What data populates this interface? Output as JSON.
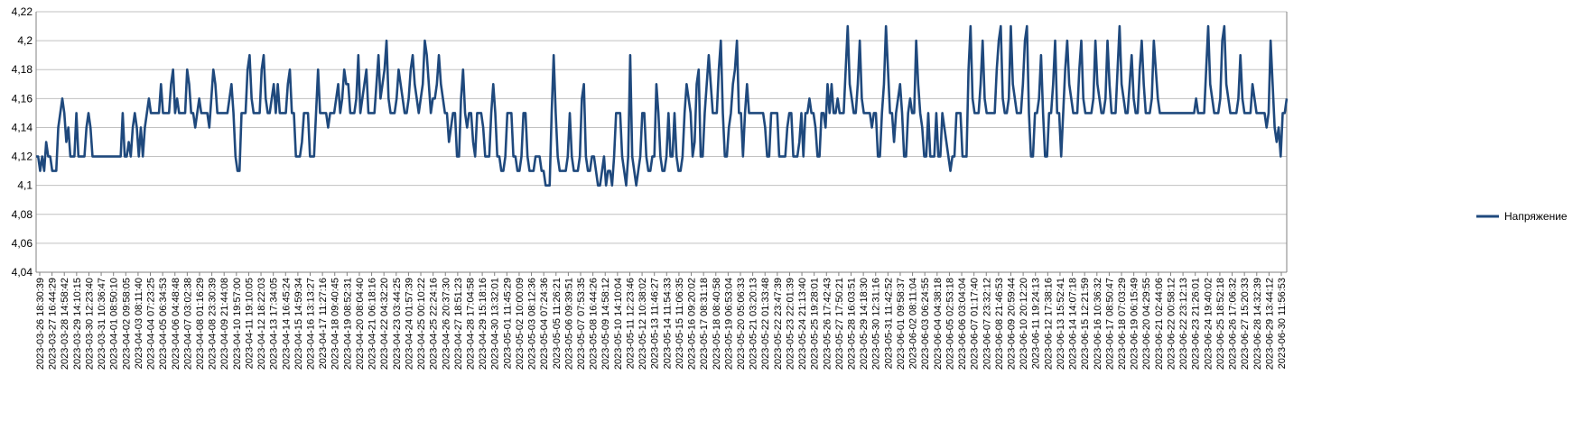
{
  "chart_data": {
    "type": "line",
    "title": "",
    "xlabel": "",
    "ylabel": "",
    "ylim": [
      4.04,
      4.22
    ],
    "y_ticks": [
      "4,04",
      "4,06",
      "4,08",
      "4,1",
      "4,12",
      "4,14",
      "4,16",
      "4,18",
      "4,2",
      "4,22"
    ],
    "grid": "horizontal",
    "legend_position": "right",
    "colors": {
      "series": "#1f497d",
      "grid": "#c0c0c0",
      "axis": "#808080"
    },
    "x_tick_labels": [
      "2023-03-26 18:30:39",
      "2023-03-27 16:44:29",
      "2023-03-28 14:58:42",
      "2023-03-29 14:10:15",
      "2023-03-30 12:23:40",
      "2023-03-31 10:36:47",
      "2023-04-01 08:50:10",
      "2023-04-02 09:58:05",
      "2023-04-03 08:11:40",
      "2023-04-04 07:23:25",
      "2023-04-05 06:34:53",
      "2023-04-06 04:48:48",
      "2023-04-07 03:02:38",
      "2023-04-08 01:16:29",
      "2023-04-08 23:30:39",
      "2023-04-09 21:44:08",
      "2023-04-10 19:57:00",
      "2023-04-11 19:10:05",
      "2023-04-12 18:22:03",
      "2023-04-13 17:34:05",
      "2023-04-14 16:45:24",
      "2023-04-15 14:59:34",
      "2023-04-16 13:13:27",
      "2023-04-17 11:27:16",
      "2023-04-18 09:40:45",
      "2023-04-19 08:52:31",
      "2023-04-20 08:04:40",
      "2023-04-21 06:18:16",
      "2023-04-22 04:32:20",
      "2023-04-23 03:44:25",
      "2023-04-24 01:57:39",
      "2023-04-25 00:10:22",
      "2023-04-25 22:24:16",
      "2023-04-26 20:37:30",
      "2023-04-27 18:51:23",
      "2023-04-28 17:04:58",
      "2023-04-29 15:18:16",
      "2023-04-30 13:32:01",
      "2023-05-01 11:45:29",
      "2023-05-02 10:00:09",
      "2023-05-03 08:12:36",
      "2023-05-04 07:24:36",
      "2023-05-05 11:26:21",
      "2023-05-06 09:39:51",
      "2023-05-07 07:53:35",
      "2023-05-08 16:44:26",
      "2023-05-09 14:58:12",
      "2023-05-10 14:10:04",
      "2023-05-11 12:23:46",
      "2023-05-12 10:38:02",
      "2023-05-13 11:46:27",
      "2023-05-14 11:54:33",
      "2023-05-15 11:06:35",
      "2023-05-16 09:20:02",
      "2023-05-17 08:31:18",
      "2023-05-18 08:40:58",
      "2023-05-19 06:53:04",
      "2023-05-20 05:06:33",
      "2023-05-21 03:20:13",
      "2023-05-22 01:33:48",
      "2023-05-22 23:47:39",
      "2023-05-23 22:01:39",
      "2023-05-24 21:13:40",
      "2023-05-25 19:28:01",
      "2023-05-26 17:42:43",
      "2023-05-27 17:50:21",
      "2023-05-28 16:03:51",
      "2023-05-29 14:18:30",
      "2023-05-30 12:31:16",
      "2023-05-31 11:42:52",
      "2023-06-01 09:58:37",
      "2023-06-02 08:11:04",
      "2023-06-03 06:24:55",
      "2023-06-04 04:38:18",
      "2023-06-05 02:53:18",
      "2023-06-06 03:04:04",
      "2023-06-07 01:17:40",
      "2023-06-07 23:32:12",
      "2023-06-08 21:46:53",
      "2023-06-09 20:59:44",
      "2023-06-10 20:12:20",
      "2023-06-11 19:24:13",
      "2023-06-12 17:38:16",
      "2023-06-13 15:52:41",
      "2023-06-14 14:07:18",
      "2023-06-15 12:21:59",
      "2023-06-16 10:36:32",
      "2023-06-17 08:50:47",
      "2023-06-18 07:03:29",
      "2023-06-19 06:15:49",
      "2023-06-20 04:29:55",
      "2023-06-21 02:44:06",
      "2023-06-22 00:58:12",
      "2023-06-22 23:12:13",
      "2023-06-23 21:26:01",
      "2023-06-24 19:40:02",
      "2023-06-25 18:52:18",
      "2023-06-26 17:06:32",
      "2023-06-27 15:20:33",
      "2023-06-28 14:32:39",
      "2023-06-29 13:44:12",
      "2023-06-30 11:56:53"
    ],
    "series": [
      {
        "name": "Напряжение",
        "values": [
          4.12,
          4.12,
          4.11,
          4.12,
          4.11,
          4.13,
          4.12,
          4.12,
          4.11,
          4.11,
          4.11,
          4.14,
          4.15,
          4.16,
          4.15,
          4.13,
          4.14,
          4.12,
          4.12,
          4.12,
          4.15,
          4.12,
          4.12,
          4.12,
          4.12,
          4.14,
          4.15,
          4.14,
          4.12,
          4.12,
          4.12,
          4.12,
          4.12,
          4.12,
          4.12,
          4.12,
          4.12,
          4.12,
          4.12,
          4.12,
          4.12,
          4.12,
          4.12,
          4.15,
          4.12,
          4.12,
          4.13,
          4.12,
          4.14,
          4.15,
          4.14,
          4.12,
          4.14,
          4.12,
          4.14,
          4.15,
          4.16,
          4.15,
          4.15,
          4.15,
          4.15,
          4.15,
          4.17,
          4.15,
          4.15,
          4.15,
          4.15,
          4.17,
          4.18,
          4.15,
          4.16,
          4.15,
          4.15,
          4.15,
          4.15,
          4.18,
          4.17,
          4.15,
          4.15,
          4.14,
          4.15,
          4.16,
          4.15,
          4.15,
          4.15,
          4.15,
          4.14,
          4.16,
          4.18,
          4.17,
          4.15,
          4.15,
          4.15,
          4.15,
          4.15,
          4.15,
          4.16,
          4.17,
          4.15,
          4.12,
          4.11,
          4.11,
          4.15,
          4.15,
          4.15,
          4.18,
          4.19,
          4.16,
          4.15,
          4.15,
          4.15,
          4.15,
          4.18,
          4.19,
          4.16,
          4.15,
          4.15,
          4.16,
          4.17,
          4.15,
          4.17,
          4.15,
          4.15,
          4.15,
          4.15,
          4.17,
          4.18,
          4.15,
          4.15,
          4.12,
          4.12,
          4.12,
          4.13,
          4.15,
          4.15,
          4.15,
          4.12,
          4.12,
          4.12,
          4.15,
          4.18,
          4.15,
          4.15,
          4.15,
          4.15,
          4.14,
          4.15,
          4.15,
          4.15,
          4.16,
          4.17,
          4.15,
          4.16,
          4.18,
          4.17,
          4.17,
          4.15,
          4.15,
          4.15,
          4.16,
          4.19,
          4.15,
          4.16,
          4.17,
          4.18,
          4.15,
          4.15,
          4.15,
          4.15,
          4.17,
          4.19,
          4.16,
          4.17,
          4.18,
          4.2,
          4.16,
          4.15,
          4.15,
          4.15,
          4.16,
          4.18,
          4.17,
          4.16,
          4.15,
          4.15,
          4.16,
          4.18,
          4.19,
          4.17,
          4.16,
          4.15,
          4.16,
          4.17,
          4.2,
          4.19,
          4.17,
          4.15,
          4.16,
          4.16,
          4.17,
          4.19,
          4.17,
          4.16,
          4.15,
          4.15,
          4.13,
          4.14,
          4.15,
          4.15,
          4.12,
          4.12,
          4.16,
          4.18,
          4.15,
          4.14,
          4.15,
          4.15,
          4.13,
          4.12,
          4.15,
          4.15,
          4.15,
          4.14,
          4.12,
          4.12,
          4.12,
          4.15,
          4.17,
          4.15,
          4.12,
          4.12,
          4.11,
          4.11,
          4.12,
          4.15,
          4.15,
          4.15,
          4.12,
          4.12,
          4.11,
          4.11,
          4.12,
          4.15,
          4.15,
          4.12,
          4.11,
          4.11,
          4.11,
          4.12,
          4.12,
          4.12,
          4.11,
          4.11,
          4.1,
          4.1,
          4.1,
          4.15,
          4.19,
          4.15,
          4.12,
          4.11,
          4.11,
          4.11,
          4.11,
          4.12,
          4.15,
          4.12,
          4.11,
          4.11,
          4.11,
          4.12,
          4.16,
          4.17,
          4.12,
          4.11,
          4.11,
          4.12,
          4.12,
          4.11,
          4.1,
          4.1,
          4.11,
          4.12,
          4.1,
          4.11,
          4.11,
          4.1,
          4.12,
          4.15,
          4.15,
          4.15,
          4.12,
          4.11,
          4.1,
          4.12,
          4.19,
          4.12,
          4.11,
          4.1,
          4.11,
          4.12,
          4.15,
          4.15,
          4.12,
          4.11,
          4.11,
          4.12,
          4.12,
          4.17,
          4.15,
          4.12,
          4.11,
          4.11,
          4.12,
          4.15,
          4.12,
          4.12,
          4.15,
          4.12,
          4.11,
          4.11,
          4.12,
          4.15,
          4.17,
          4.16,
          4.15,
          4.12,
          4.13,
          4.17,
          4.18,
          4.12,
          4.12,
          4.15,
          4.17,
          4.19,
          4.17,
          4.15,
          4.15,
          4.15,
          4.18,
          4.2,
          4.15,
          4.12,
          4.12,
          4.14,
          4.15,
          4.17,
          4.18,
          4.2,
          4.15,
          4.15,
          4.12,
          4.15,
          4.17,
          4.15,
          4.15,
          4.15,
          4.15,
          4.15,
          4.15,
          4.15,
          4.15,
          4.14,
          4.12,
          4.12,
          4.15,
          4.15,
          4.15,
          4.15,
          4.12,
          4.12,
          4.12,
          4.12,
          4.14,
          4.15,
          4.15,
          4.12,
          4.12,
          4.12,
          4.13,
          4.15,
          4.12,
          4.15,
          4.15,
          4.16,
          4.15,
          4.15,
          4.14,
          4.12,
          4.12,
          4.15,
          4.15,
          4.14,
          4.17,
          4.15,
          4.17,
          4.15,
          4.15,
          4.16,
          4.15,
          4.15,
          4.15,
          4.18,
          4.21,
          4.17,
          4.16,
          4.15,
          4.15,
          4.17,
          4.2,
          4.16,
          4.15,
          4.15,
          4.15,
          4.15,
          4.14,
          4.15,
          4.15,
          4.12,
          4.12,
          4.15,
          4.17,
          4.21,
          4.18,
          4.15,
          4.15,
          4.13,
          4.15,
          4.16,
          4.17,
          4.15,
          4.12,
          4.12,
          4.15,
          4.16,
          4.15,
          4.15,
          4.2,
          4.17,
          4.15,
          4.14,
          4.12,
          4.12,
          4.15,
          4.12,
          4.12,
          4.12,
          4.15,
          4.12,
          4.12,
          4.15,
          4.14,
          4.13,
          4.12,
          4.11,
          4.12,
          4.12,
          4.15,
          4.15,
          4.15,
          4.12,
          4.12,
          4.12,
          4.18,
          4.21,
          4.16,
          4.15,
          4.15,
          4.15,
          4.17,
          4.2,
          4.16,
          4.15,
          4.15,
          4.15,
          4.15,
          4.15,
          4.18,
          4.2,
          4.21,
          4.16,
          4.15,
          4.15,
          4.16,
          4.21,
          4.17,
          4.16,
          4.15,
          4.15,
          4.15,
          4.17,
          4.2,
          4.21,
          4.15,
          4.12,
          4.12,
          4.15,
          4.15,
          4.16,
          4.19,
          4.15,
          4.12,
          4.12,
          4.15,
          4.15,
          4.17,
          4.2,
          4.15,
          4.15,
          4.12,
          4.15,
          4.18,
          4.2,
          4.17,
          4.16,
          4.15,
          4.15,
          4.15,
          4.18,
          4.2,
          4.16,
          4.15,
          4.15,
          4.15,
          4.15,
          4.16,
          4.2,
          4.17,
          4.16,
          4.15,
          4.15,
          4.16,
          4.2,
          4.17,
          4.15,
          4.15,
          4.15,
          4.18,
          4.21,
          4.17,
          4.16,
          4.15,
          4.15,
          4.17,
          4.19,
          4.16,
          4.15,
          4.15,
          4.18,
          4.2,
          4.17,
          4.15,
          4.15,
          4.15,
          4.16,
          4.2,
          4.18,
          4.16,
          4.15,
          4.15,
          4.15,
          4.15,
          4.15,
          4.15,
          4.15,
          4.15,
          4.15,
          4.15,
          4.15,
          4.15,
          4.15,
          4.15,
          4.15,
          4.15,
          4.15,
          4.15,
          4.16,
          4.15,
          4.15,
          4.15,
          4.15,
          4.18,
          4.21,
          4.17,
          4.16,
          4.15,
          4.15,
          4.15,
          4.16,
          4.2,
          4.21,
          4.17,
          4.16,
          4.15,
          4.15,
          4.15,
          4.15,
          4.16,
          4.19,
          4.16,
          4.15,
          4.15,
          4.15,
          4.15,
          4.17,
          4.16,
          4.15,
          4.15,
          4.15,
          4.15,
          4.15,
          4.14,
          4.15,
          4.2,
          4.17,
          4.14,
          4.13,
          4.14,
          4.12,
          4.15,
          4.15,
          4.16
        ]
      }
    ]
  }
}
